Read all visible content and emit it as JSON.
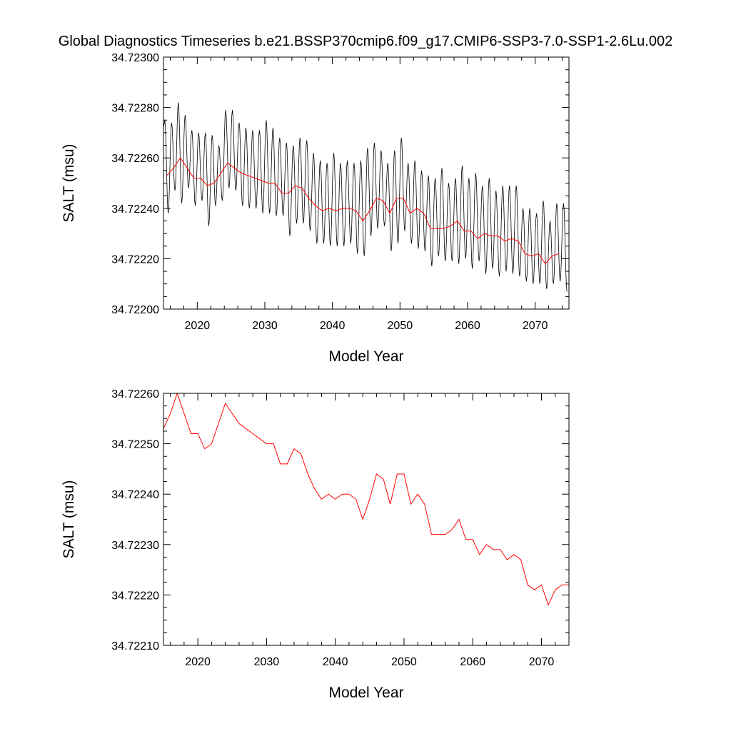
{
  "title": "Global Diagnostics Timeseries b.e21.BSSP370cmip6.f09_g17.CMIP6-SSP3-7.0-SSP1-2.6Lu.002",
  "colors": {
    "monthly": "#000000",
    "annual": "#ff0000",
    "frame": "#000000"
  },
  "chart_data": [
    {
      "type": "line",
      "xlabel": "Model Year",
      "ylabel": "SALT (msu)",
      "xlim": [
        2015,
        2075
      ],
      "ylim": [
        34.722,
        34.723
      ],
      "xticks": [
        2020,
        2030,
        2040,
        2050,
        2060,
        2070
      ],
      "xtick_labels": [
        "2020",
        "2030",
        "2040",
        "2050",
        "2060",
        "2070"
      ],
      "yticks": [
        34.722,
        34.7222,
        34.7224,
        34.7226,
        34.7228,
        34.723
      ],
      "ytick_labels": [
        "34.72200",
        "34.72220",
        "34.72240",
        "34.72260",
        "34.72280",
        "34.72300"
      ],
      "series": [
        {
          "style": "monthly",
          "color": "#000000",
          "seasonal_cycle": "annual oscillation",
          "peaks": [
            [
              2015.2,
              34.72275
            ],
            [
              2016.2,
              34.72274
            ],
            [
              2017.2,
              34.72282
            ],
            [
              2018.2,
              34.72277
            ],
            [
              2019.2,
              34.72271
            ],
            [
              2020.2,
              34.7227
            ],
            [
              2021.2,
              34.7227
            ],
            [
              2022.2,
              34.72269
            ],
            [
              2023.2,
              34.72265
            ],
            [
              2024.2,
              34.72279
            ],
            [
              2025.2,
              34.72279
            ],
            [
              2026.2,
              34.72274
            ],
            [
              2027.2,
              34.72272
            ],
            [
              2028.2,
              34.72271
            ],
            [
              2029.2,
              34.72271
            ],
            [
              2030.2,
              34.72275
            ],
            [
              2031.2,
              34.72272
            ],
            [
              2032.2,
              34.72268
            ],
            [
              2033.2,
              34.72266
            ],
            [
              2034.2,
              34.72265
            ],
            [
              2035.2,
              34.72268
            ],
            [
              2036.2,
              34.72267
            ],
            [
              2037.2,
              34.72262
            ],
            [
              2038.2,
              34.72259
            ],
            [
              2039.2,
              34.72258
            ],
            [
              2040.2,
              34.72262
            ],
            [
              2041.2,
              34.72258
            ],
            [
              2042.2,
              34.72259
            ],
            [
              2043.2,
              34.72258
            ],
            [
              2044.2,
              34.72259
            ],
            [
              2045.2,
              34.72264
            ],
            [
              2046.2,
              34.72266
            ],
            [
              2047.2,
              34.72263
            ],
            [
              2048.2,
              34.72258
            ],
            [
              2049.2,
              34.72263
            ],
            [
              2050.2,
              34.72268
            ],
            [
              2051.2,
              34.72258
            ],
            [
              2052.2,
              34.72259
            ],
            [
              2053.2,
              34.72255
            ],
            [
              2054.2,
              34.72253
            ],
            [
              2055.2,
              34.72252
            ],
            [
              2056.2,
              34.72256
            ],
            [
              2057.2,
              34.7225
            ],
            [
              2058.2,
              34.72252
            ],
            [
              2059.2,
              34.72257
            ],
            [
              2060.2,
              34.72252
            ],
            [
              2061.2,
              34.72254
            ],
            [
              2062.2,
              34.72249
            ],
            [
              2063.2,
              34.72252
            ],
            [
              2064.2,
              34.72247
            ],
            [
              2065.2,
              34.72249
            ],
            [
              2066.2,
              34.72249
            ],
            [
              2067.2,
              34.72249
            ],
            [
              2068.2,
              34.7224
            ],
            [
              2069.2,
              34.7224
            ],
            [
              2070.2,
              34.72238
            ],
            [
              2071.2,
              34.72243
            ],
            [
              2072.2,
              34.72235
            ],
            [
              2073.2,
              34.72242
            ],
            [
              2074.2,
              34.72242
            ]
          ],
          "troughs": [
            [
              2015.7,
              34.72238
            ],
            [
              2016.7,
              34.72247
            ],
            [
              2017.7,
              34.72242
            ],
            [
              2018.7,
              34.72248
            ],
            [
              2019.7,
              34.72241
            ],
            [
              2020.7,
              34.72243
            ],
            [
              2021.7,
              34.72233
            ],
            [
              2022.7,
              34.72241
            ],
            [
              2023.7,
              34.72243
            ],
            [
              2024.7,
              34.72248
            ],
            [
              2025.7,
              34.72247
            ],
            [
              2026.7,
              34.72241
            ],
            [
              2027.7,
              34.7224
            ],
            [
              2028.7,
              34.7224
            ],
            [
              2029.7,
              34.72238
            ],
            [
              2030.7,
              34.72238
            ],
            [
              2031.7,
              34.72237
            ],
            [
              2032.7,
              34.72237
            ],
            [
              2033.7,
              34.72229
            ],
            [
              2034.7,
              34.72234
            ],
            [
              2035.7,
              34.72234
            ],
            [
              2036.7,
              34.72231
            ],
            [
              2037.7,
              34.72226
            ],
            [
              2038.7,
              34.72226
            ],
            [
              2039.7,
              34.72225
            ],
            [
              2040.7,
              34.72225
            ],
            [
              2041.7,
              34.72225
            ],
            [
              2042.7,
              34.72226
            ],
            [
              2043.7,
              34.72222
            ],
            [
              2044.7,
              34.72221
            ],
            [
              2045.7,
              34.72229
            ],
            [
              2046.7,
              34.72232
            ],
            [
              2047.7,
              34.72233
            ],
            [
              2048.7,
              34.72223
            ],
            [
              2049.7,
              34.72226
            ],
            [
              2050.7,
              34.72231
            ],
            [
              2051.7,
              34.72226
            ],
            [
              2052.7,
              34.72224
            ],
            [
              2053.7,
              34.72223
            ],
            [
              2054.7,
              34.72217
            ],
            [
              2055.7,
              34.72221
            ],
            [
              2056.7,
              34.72219
            ],
            [
              2057.7,
              34.72219
            ],
            [
              2058.7,
              34.72218
            ],
            [
              2059.7,
              34.7222
            ],
            [
              2060.7,
              34.72216
            ],
            [
              2061.7,
              34.72219
            ],
            [
              2062.7,
              34.72214
            ],
            [
              2063.7,
              34.72216
            ],
            [
              2064.7,
              34.72213
            ],
            [
              2065.7,
              34.72215
            ],
            [
              2066.7,
              34.72214
            ],
            [
              2067.7,
              34.72213
            ],
            [
              2068.7,
              34.72211
            ],
            [
              2069.7,
              34.7221
            ],
            [
              2070.7,
              34.7221
            ],
            [
              2071.7,
              34.72208
            ],
            [
              2072.7,
              34.7221
            ],
            [
              2073.7,
              34.72211
            ],
            [
              2074.7,
              34.72207
            ]
          ]
        },
        {
          "style": "annual",
          "color": "#ff0000",
          "x": [
            2015.5,
            2016.5,
            2017.5,
            2018.5,
            2019.5,
            2020.5,
            2021.5,
            2022.5,
            2023.5,
            2024.5,
            2025.5,
            2026.5,
            2027.5,
            2028.5,
            2029.5,
            2030.5,
            2031.5,
            2032.5,
            2033.5,
            2034.5,
            2035.5,
            2036.5,
            2037.5,
            2038.5,
            2039.5,
            2040.5,
            2041.5,
            2042.5,
            2043.5,
            2044.5,
            2045.5,
            2046.5,
            2047.5,
            2048.5,
            2049.5,
            2050.5,
            2051.5,
            2052.5,
            2053.5,
            2054.5,
            2055.5,
            2056.5,
            2057.5,
            2058.5,
            2059.5,
            2060.5,
            2061.5,
            2062.5,
            2063.5,
            2064.5,
            2065.5,
            2066.5,
            2067.5,
            2068.5,
            2069.5,
            2070.5,
            2071.5,
            2072.5,
            2073.5
          ],
          "values": [
            34.72253,
            34.72256,
            34.7226,
            34.72256,
            34.72252,
            34.72252,
            34.72249,
            34.7225,
            34.72254,
            34.72258,
            34.72256,
            34.72254,
            34.72253,
            34.72252,
            34.72251,
            34.7225,
            34.7225,
            34.72246,
            34.72246,
            34.72249,
            34.72248,
            34.72244,
            34.72241,
            34.72239,
            34.7224,
            34.72239,
            34.7224,
            34.7224,
            34.72239,
            34.72235,
            34.72239,
            34.72244,
            34.72243,
            34.72238,
            34.72244,
            34.72244,
            34.72238,
            34.7224,
            34.72238,
            34.72232,
            34.72232,
            34.72232,
            34.72233,
            34.72235,
            34.72231,
            34.72231,
            34.72228,
            34.7223,
            34.72229,
            34.72229,
            34.72227,
            34.72228,
            34.72227,
            34.72222,
            34.72221,
            34.72222,
            34.72218,
            34.72221,
            34.72222
          ]
        }
      ]
    },
    {
      "type": "line",
      "xlabel": "Model Year",
      "ylabel": "SALT (msu)",
      "xlim": [
        2015,
        2074
      ],
      "ylim": [
        34.7221,
        34.7226
      ],
      "xticks": [
        2020,
        2030,
        2040,
        2050,
        2060,
        2070
      ],
      "xtick_labels": [
        "2020",
        "2030",
        "2040",
        "2050",
        "2060",
        "2070"
      ],
      "yticks": [
        34.7221,
        34.7222,
        34.7223,
        34.7224,
        34.7225,
        34.7226
      ],
      "ytick_labels": [
        "34.72210",
        "34.72220",
        "34.72230",
        "34.72240",
        "34.72250",
        "34.72260"
      ],
      "series": [
        {
          "style": "annual",
          "color": "#ff0000",
          "x": [
            2015,
            2016,
            2017,
            2018,
            2019,
            2020,
            2021,
            2022,
            2023,
            2024,
            2025,
            2026,
            2027,
            2028,
            2029,
            2030,
            2031,
            2032,
            2033,
            2034,
            2035,
            2036,
            2037,
            2038,
            2039,
            2040,
            2041,
            2042,
            2043,
            2044,
            2045,
            2046,
            2047,
            2048,
            2049,
            2050,
            2051,
            2052,
            2053,
            2054,
            2055,
            2056,
            2057,
            2058,
            2059,
            2060,
            2061,
            2062,
            2063,
            2064,
            2065,
            2066,
            2067,
            2068,
            2069,
            2070,
            2071,
            2072,
            2073,
            2074
          ],
          "values": [
            34.72253,
            34.72256,
            34.7226,
            34.72256,
            34.72252,
            34.72252,
            34.72249,
            34.7225,
            34.72254,
            34.72258,
            34.72256,
            34.72254,
            34.72253,
            34.72252,
            34.72251,
            34.7225,
            34.7225,
            34.72246,
            34.72246,
            34.72249,
            34.72248,
            34.72244,
            34.72241,
            34.72239,
            34.7224,
            34.72239,
            34.7224,
            34.7224,
            34.72239,
            34.72235,
            34.72239,
            34.72244,
            34.72243,
            34.72238,
            34.72244,
            34.72244,
            34.72238,
            34.7224,
            34.72238,
            34.72232,
            34.72232,
            34.72232,
            34.72233,
            34.72235,
            34.72231,
            34.72231,
            34.72228,
            34.7223,
            34.72229,
            34.72229,
            34.72227,
            34.72228,
            34.72227,
            34.72222,
            34.72221,
            34.72222,
            34.72218,
            34.72221,
            34.72222,
            34.72222
          ]
        }
      ]
    }
  ]
}
